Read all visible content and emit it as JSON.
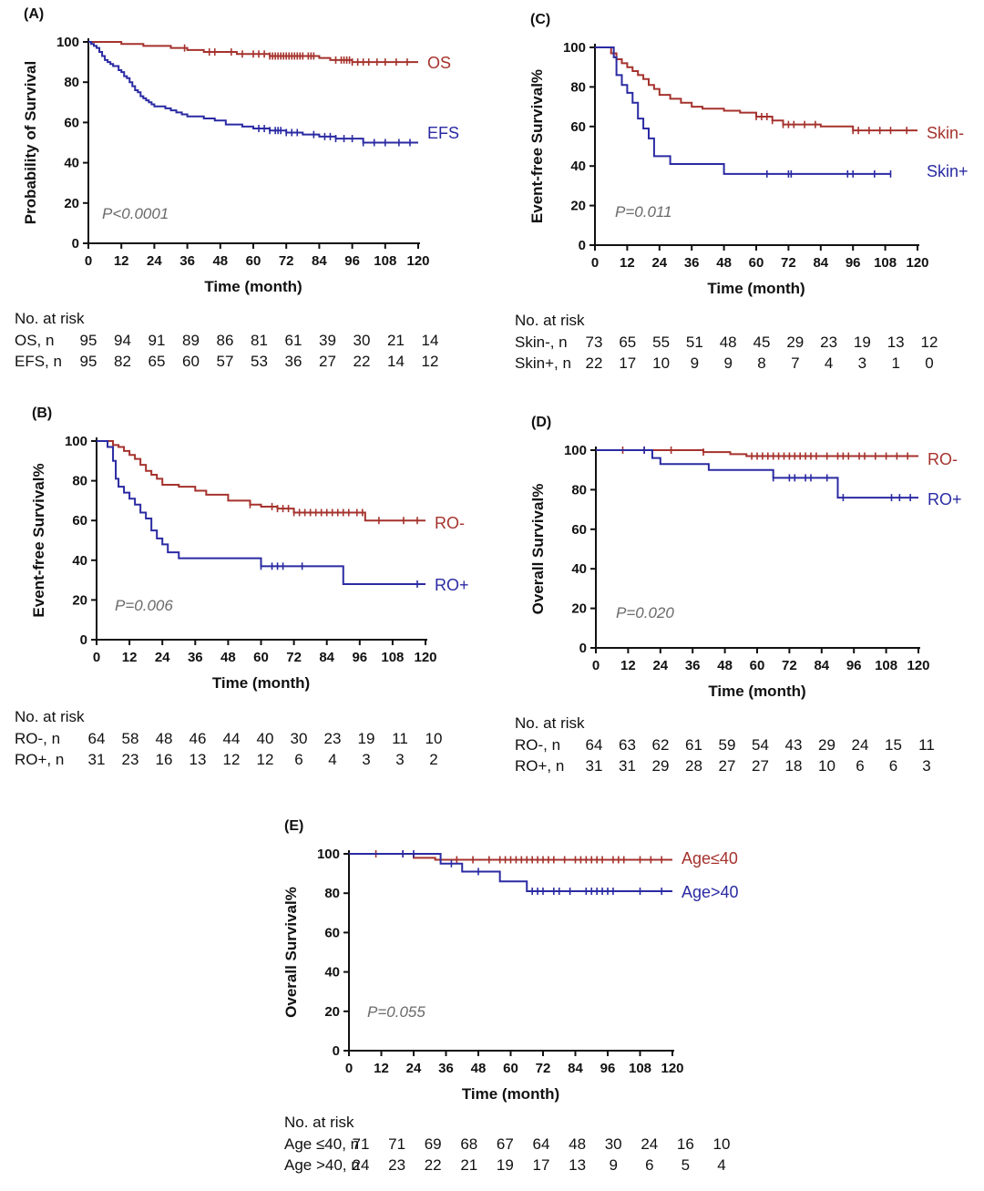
{
  "figure": {
    "xlabel": "Time (month)",
    "xticks": [
      0,
      12,
      24,
      36,
      48,
      60,
      72,
      84,
      96,
      108,
      120
    ],
    "yticks": [
      0,
      20,
      40,
      60,
      80,
      100
    ],
    "risk_title": "No. at risk",
    "colors": {
      "red": "#a5322d",
      "blue": "#2a2aa3",
      "pval": "#6a6a6a"
    }
  },
  "chart_data": [
    {
      "id": "A",
      "panel_label": "(A)",
      "type": "line",
      "title": "",
      "xlabel": "Time (month)",
      "ylabel": "Probability of Survival",
      "xlim": [
        0,
        120
      ],
      "ylim": [
        0,
        100
      ],
      "p_value": "P<0.0001",
      "series": [
        {
          "name": "OS",
          "color": "#a5322d",
          "x": [
            0,
            2,
            5,
            8,
            12,
            16,
            20,
            24,
            30,
            36,
            42,
            48,
            54,
            60,
            66,
            72,
            78,
            84,
            88,
            92,
            96,
            120
          ],
          "y": [
            100,
            100,
            100,
            100,
            99,
            99,
            98,
            98,
            97,
            96,
            95,
            95,
            94,
            94,
            93,
            93,
            93,
            92,
            91,
            91,
            90,
            90
          ],
          "censor_x": [
            35,
            44,
            46,
            52,
            56,
            60,
            62,
            64,
            66,
            67,
            68,
            69,
            70,
            71,
            72,
            73,
            74,
            75,
            76,
            77,
            78,
            80,
            81,
            82,
            90,
            92,
            93,
            94,
            95,
            96,
            98,
            100,
            102,
            105,
            108,
            112,
            116
          ]
        },
        {
          "name": "EFS",
          "color": "#2a2aa3",
          "x": [
            0,
            1,
            2,
            3,
            4,
            5,
            6,
            7,
            8,
            9,
            10,
            11,
            12,
            13,
            14,
            15,
            16,
            17,
            18,
            19,
            20,
            21,
            22,
            23,
            24,
            28,
            30,
            32,
            34,
            36,
            42,
            46,
            50,
            56,
            60,
            66,
            72,
            78,
            84,
            90,
            100,
            120
          ],
          "y": [
            100,
            99,
            98,
            97,
            95,
            93,
            91,
            90,
            89,
            88,
            88,
            86,
            85,
            83,
            82,
            80,
            78,
            76,
            75,
            73,
            72,
            71,
            70,
            69,
            68,
            67,
            66,
            65,
            64,
            63,
            62,
            61,
            59,
            58,
            57,
            56,
            55,
            54,
            53,
            52,
            50,
            50
          ],
          "censor_x": [
            62,
            64,
            66,
            68,
            69,
            70,
            72,
            74,
            76,
            82,
            86,
            88,
            90,
            93,
            96,
            100,
            104,
            108,
            113,
            117
          ]
        }
      ],
      "risk_table": [
        {
          "label": "OS,   n",
          "values": [
            95,
            94,
            91,
            89,
            86,
            81,
            61,
            39,
            30,
            21,
            14
          ]
        },
        {
          "label": "EFS, n",
          "values": [
            95,
            82,
            65,
            60,
            57,
            53,
            36,
            27,
            22,
            14,
            12
          ]
        }
      ]
    },
    {
      "id": "B",
      "panel_label": "(B)",
      "type": "line",
      "title": "",
      "xlabel": "Time (month)",
      "ylabel": "Event-free Survival%",
      "xlim": [
        0,
        120
      ],
      "ylim": [
        0,
        100
      ],
      "p_value": "P=0.006",
      "series": [
        {
          "name": "RO-",
          "color": "#a5322d",
          "x": [
            0,
            6,
            8,
            10,
            12,
            14,
            16,
            18,
            20,
            22,
            24,
            30,
            36,
            40,
            48,
            56,
            60,
            66,
            72,
            96,
            98,
            120
          ],
          "y": [
            100,
            98,
            97,
            95,
            93,
            91,
            88,
            85,
            83,
            81,
            78,
            77,
            75,
            73,
            70,
            68,
            67,
            66,
            64,
            64,
            60,
            60
          ],
          "censor_x": [
            56,
            64,
            66,
            68,
            70,
            72,
            74,
            76,
            78,
            80,
            82,
            84,
            86,
            88,
            90,
            92,
            95,
            97,
            103,
            112,
            117
          ]
        },
        {
          "name": "RO+",
          "color": "#2a2aa3",
          "x": [
            0,
            4,
            6,
            7,
            8,
            10,
            12,
            14,
            16,
            18,
            20,
            22,
            24,
            26,
            30,
            40,
            60,
            90,
            120
          ],
          "y": [
            100,
            97,
            90,
            81,
            77,
            74,
            71,
            68,
            64,
            61,
            55,
            51,
            48,
            44,
            41,
            41,
            37,
            28,
            28
          ],
          "censor_x": [
            60,
            64,
            66,
            68,
            75,
            117
          ]
        }
      ],
      "risk_table": [
        {
          "label": "RO-,  n",
          "values": [
            64,
            58,
            48,
            46,
            44,
            40,
            30,
            23,
            19,
            11,
            10
          ]
        },
        {
          "label": "RO+, n",
          "values": [
            31,
            23,
            16,
            13,
            12,
            12,
            6,
            4,
            3,
            3,
            2
          ]
        }
      ]
    },
    {
      "id": "C",
      "panel_label": "(C)",
      "type": "line",
      "title": "",
      "xlabel": "Time (month)",
      "ylabel": "Event-free Survival%",
      "xlim": [
        0,
        120
      ],
      "ylim": [
        0,
        100
      ],
      "p_value": "P=0.011",
      "series": [
        {
          "name": "Skin-",
          "color": "#a5322d",
          "x": [
            0,
            6,
            8,
            10,
            12,
            14,
            16,
            18,
            20,
            22,
            24,
            28,
            32,
            36,
            40,
            48,
            54,
            60,
            66,
            70,
            84,
            96,
            120
          ],
          "y": [
            100,
            97,
            94,
            92,
            90,
            88,
            86,
            84,
            81,
            79,
            76,
            74,
            72,
            70,
            69,
            68,
            67,
            65,
            63,
            61,
            60,
            58,
            58
          ],
          "censor_x": [
            60,
            62,
            64,
            66,
            70,
            72,
            74,
            78,
            82,
            96,
            98,
            102,
            106,
            110,
            116
          ]
        },
        {
          "name": "Skin+",
          "color": "#2a2aa3",
          "x": [
            0,
            7,
            8,
            10,
            12,
            14,
            16,
            18,
            20,
            22,
            28,
            48,
            110
          ],
          "y": [
            100,
            95,
            86,
            81,
            77,
            72,
            64,
            59,
            54,
            45,
            41,
            36,
            36
          ],
          "censor_x": [
            64,
            72,
            73,
            94,
            96,
            104,
            110
          ]
        }
      ],
      "risk_table": [
        {
          "label": "Skin-,  n",
          "values": [
            73,
            65,
            55,
            51,
            48,
            45,
            29,
            23,
            19,
            13,
            12
          ]
        },
        {
          "label": "Skin+, n",
          "values": [
            22,
            17,
            10,
            9,
            9,
            8,
            7,
            4,
            3,
            1,
            0
          ]
        }
      ]
    },
    {
      "id": "D",
      "panel_label": "(D)",
      "type": "line",
      "title": "",
      "xlabel": "Time (month)",
      "ylabel": "Overall Survival%",
      "xlim": [
        0,
        120
      ],
      "ylim": [
        0,
        100
      ],
      "p_value": "P=0.020",
      "series": [
        {
          "name": "RO-",
          "color": "#a5322d",
          "x": [
            0,
            30,
            40,
            50,
            56,
            120
          ],
          "y": [
            100,
            100,
            99,
            98,
            97,
            97
          ],
          "censor_x": [
            10,
            18,
            28,
            40,
            58,
            60,
            62,
            64,
            66,
            68,
            70,
            72,
            74,
            76,
            78,
            80,
            82,
            86,
            90,
            92,
            94,
            98,
            100,
            104,
            108,
            112,
            116
          ]
        },
        {
          "name": "RO+",
          "color": "#2a2aa3",
          "x": [
            0,
            19,
            21,
            24,
            42,
            66,
            90,
            120
          ],
          "y": [
            100,
            100,
            96,
            93,
            90,
            86,
            76,
            76
          ],
          "censor_x": [
            18,
            66,
            72,
            74,
            78,
            80,
            86,
            92,
            110,
            113,
            117
          ]
        }
      ],
      "risk_table": [
        {
          "label": "RO-,  n",
          "values": [
            64,
            63,
            62,
            61,
            59,
            54,
            43,
            29,
            24,
            15,
            11
          ]
        },
        {
          "label": "RO+, n",
          "values": [
            31,
            31,
            29,
            28,
            27,
            27,
            18,
            10,
            6,
            6,
            3
          ]
        }
      ]
    },
    {
      "id": "E",
      "panel_label": "(E)",
      "type": "line",
      "title": "",
      "xlabel": "Time (month)",
      "ylabel": "Overall Survival%",
      "xlim": [
        0,
        120
      ],
      "ylim": [
        0,
        100
      ],
      "p_value": "P=0.055",
      "series": [
        {
          "name": "Age≤40",
          "color": "#a5322d",
          "x": [
            0,
            20,
            24,
            32,
            120
          ],
          "y": [
            100,
            100,
            98,
            97,
            97
          ],
          "censor_x": [
            10,
            20,
            40,
            46,
            52,
            56,
            58,
            60,
            62,
            64,
            66,
            68,
            70,
            72,
            74,
            76,
            80,
            84,
            86,
            88,
            90,
            92,
            94,
            98,
            100,
            102,
            108,
            112,
            116
          ]
        },
        {
          "name": "Age>40",
          "color": "#2a2aa3",
          "x": [
            0,
            34,
            42,
            56,
            66,
            120
          ],
          "y": [
            100,
            95,
            91,
            86,
            81,
            81
          ],
          "censor_x": [
            20,
            24,
            38,
            48,
            68,
            70,
            72,
            76,
            78,
            82,
            88,
            90,
            92,
            94,
            96,
            98,
            108,
            116
          ]
        }
      ],
      "risk_table": [
        {
          "label": "Age ≤40,  n",
          "values": [
            71,
            71,
            69,
            68,
            67,
            64,
            48,
            30,
            24,
            16,
            10
          ]
        },
        {
          "label": "Age >40,  n",
          "values": [
            24,
            23,
            22,
            21,
            19,
            17,
            13,
            9,
            6,
            5,
            4
          ]
        }
      ]
    }
  ]
}
